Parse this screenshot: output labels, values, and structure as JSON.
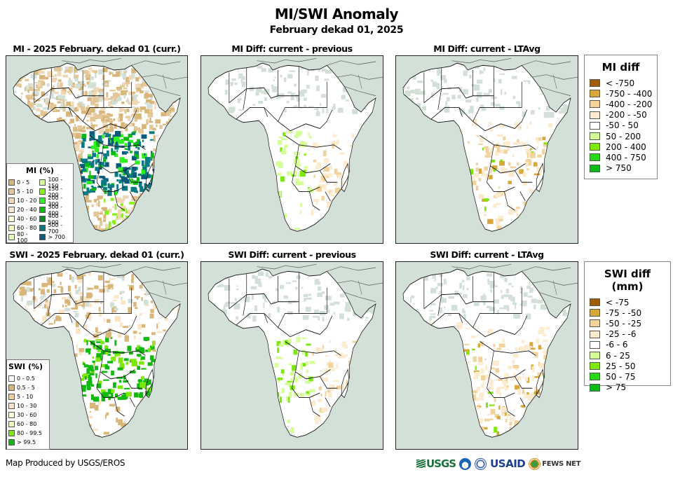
{
  "header": {
    "title": "MI/SWI Anomaly",
    "subtitle": "February dekad 01, 2025"
  },
  "colors": {
    "ocean": "#d2e0d8",
    "land_nodata": "#ffffff",
    "border": "#111111"
  },
  "panels": [
    {
      "id": "mi-current",
      "title": "MI - 2025 February. dekad 01 (curr.)",
      "variable": "MI",
      "kind": "current"
    },
    {
      "id": "mi-diff-previous",
      "title": "MI Diff: current - previous",
      "variable": "MI",
      "kind": "diff-previous"
    },
    {
      "id": "mi-diff-ltavg",
      "title": "MI Diff: current - LTAvg",
      "variable": "MI",
      "kind": "diff-ltavg"
    },
    {
      "id": "swi-current",
      "title": "SWI - 2025 February. dekad 01 (curr.)",
      "variable": "SWI",
      "kind": "current"
    },
    {
      "id": "swi-diff-previous",
      "title": "SWI Diff: current - previous",
      "variable": "SWI",
      "kind": "diff-previous"
    },
    {
      "id": "swi-diff-ltavg",
      "title": "SWI Diff: current - LTAvg",
      "variable": "SWI",
      "kind": "diff-ltavg"
    }
  ],
  "legends": {
    "mi_percent": {
      "title": "MI (%)",
      "items": [
        {
          "label": "0 - 5",
          "color": "#d9b77a"
        },
        {
          "label": "5 - 10",
          "color": "#e3c796"
        },
        {
          "label": "10 - 20",
          "color": "#f0d8b6"
        },
        {
          "label": "20 - 40",
          "color": "#f8e7d2"
        },
        {
          "label": "40 - 60",
          "color": "#ffffd8"
        },
        {
          "label": "60 - 80",
          "color": "#f0ffc0"
        },
        {
          "label": "80 - 100",
          "color": "#e0ffb8"
        },
        {
          "label": "100 - 150",
          "color": "#d2ff9a"
        },
        {
          "label": "150 - 200",
          "color": "#86f21a"
        },
        {
          "label": "200 - 300",
          "color": "#2ef01e"
        },
        {
          "label": "300 - 400",
          "color": "#0cbc0c"
        },
        {
          "label": "400 - 500",
          "color": "#0a8c2a"
        },
        {
          "label": "500 - 700",
          "color": "#0a7a82"
        },
        {
          "label": "> 700",
          "color": "#0e5a7a"
        }
      ]
    },
    "swi_percent": {
      "title": "SWI (%)",
      "items": [
        {
          "label": "0 - 0.5",
          "color": "#ffffff"
        },
        {
          "label": "0.5 - 5",
          "color": "#d9b77a"
        },
        {
          "label": "5 - 10",
          "color": "#f0cf9a"
        },
        {
          "label": "10 - 30",
          "color": "#fbe3c4"
        },
        {
          "label": "30 - 60",
          "color": "#ffffd8"
        },
        {
          "label": "60 - 80",
          "color": "#ecffb8"
        },
        {
          "label": "80 - 99.5",
          "color": "#7ee80c"
        },
        {
          "label": "> 99.5",
          "color": "#10b810"
        }
      ]
    },
    "mi_diff": {
      "title": "MI diff",
      "items": [
        {
          "label": "< -750",
          "color": "#9c5e08"
        },
        {
          "label": "-750 - -400",
          "color": "#d6a83a"
        },
        {
          "label": "-400 - -200",
          "color": "#f2d39c"
        },
        {
          "label": "-200 - -50",
          "color": "#fdebd0"
        },
        {
          "label": "-50 - 50",
          "color": "#ffffff"
        },
        {
          "label": "50 - 200",
          "color": "#d4ff96"
        },
        {
          "label": "200 - 400",
          "color": "#7ee80c"
        },
        {
          "label": "400 - 750",
          "color": "#2ad81a"
        },
        {
          "label": "> 750",
          "color": "#0cb81a"
        }
      ]
    },
    "swi_diff": {
      "title": "SWI diff (mm)",
      "items": [
        {
          "label": "< -75",
          "color": "#9c5e08"
        },
        {
          "label": "-75 - -50",
          "color": "#d6a83a"
        },
        {
          "label": "-50 - -25",
          "color": "#f2d39c"
        },
        {
          "label": "-25 - -6",
          "color": "#fdebd0"
        },
        {
          "label": "-6 - 6",
          "color": "#ffffff"
        },
        {
          "label": "6 - 25",
          "color": "#d4ff96"
        },
        {
          "label": "25 - 50",
          "color": "#7ee80c"
        },
        {
          "label": "50 - 75",
          "color": "#2ad81a"
        },
        {
          "label": "> 75",
          "color": "#0cb81a"
        }
      ]
    }
  },
  "footer": {
    "credit": "Map Produced by USGS/EROS",
    "logos": [
      {
        "name": "USGS",
        "text": "USGS"
      },
      {
        "name": "NOAA",
        "text": ""
      },
      {
        "name": "US Department of Commerce",
        "text": ""
      },
      {
        "name": "USAID",
        "text": "USAID"
      },
      {
        "name": "FEWS NET",
        "text": "FEWS NET"
      }
    ]
  }
}
